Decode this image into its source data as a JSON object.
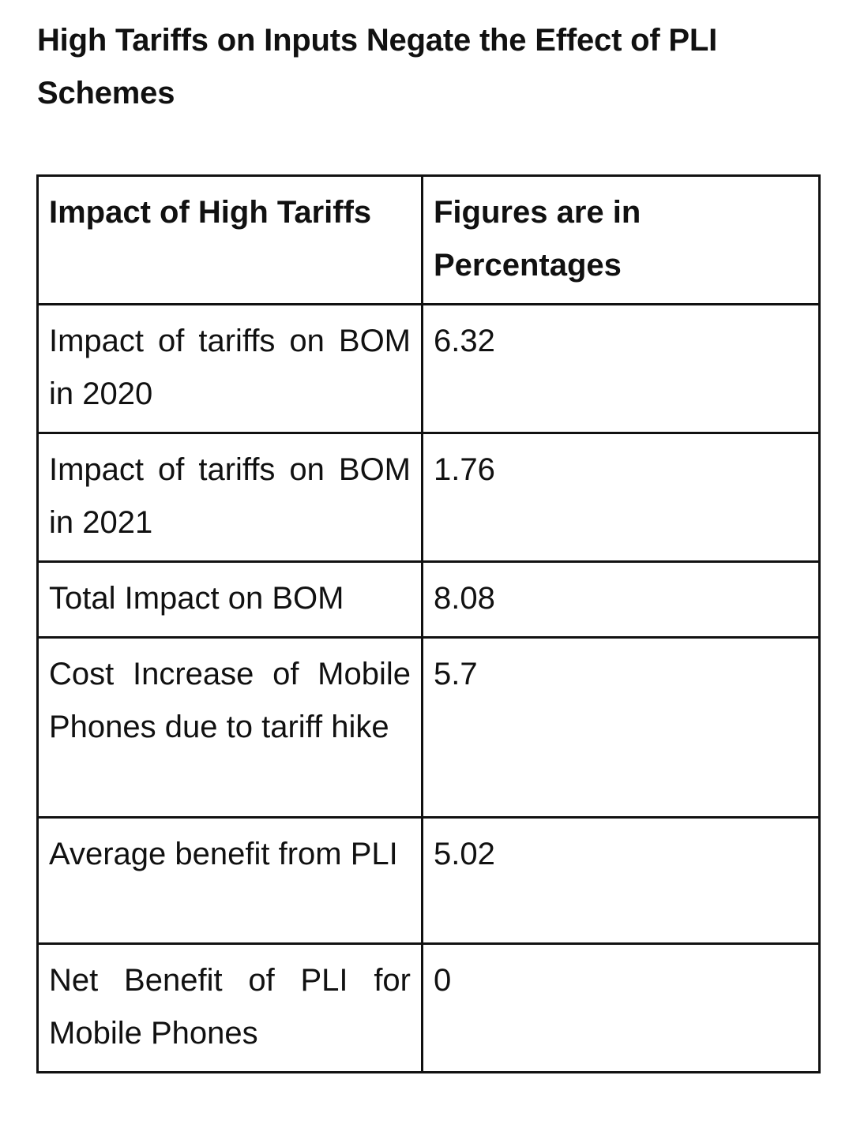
{
  "title": "High Tariffs on Inputs Negate the Effect of PLI Schemes",
  "table": {
    "headers": [
      "Impact of High Tariffs",
      "Figures are in Percentages"
    ],
    "rows": [
      [
        "Impact of tariffs on BOM in 2020",
        "6.32"
      ],
      [
        "Impact of tariffs on BOM in 2021",
        "1.76"
      ],
      [
        "Total Impact on BOM",
        "8.08"
      ],
      [
        "Cost Increase of Mobile Phones due to tariff hike",
        "5.7"
      ],
      [
        "Average benefit from PLI",
        "5.02"
      ],
      [
        "Net Benefit of PLI for Mobile Phones",
        "0"
      ]
    ]
  }
}
